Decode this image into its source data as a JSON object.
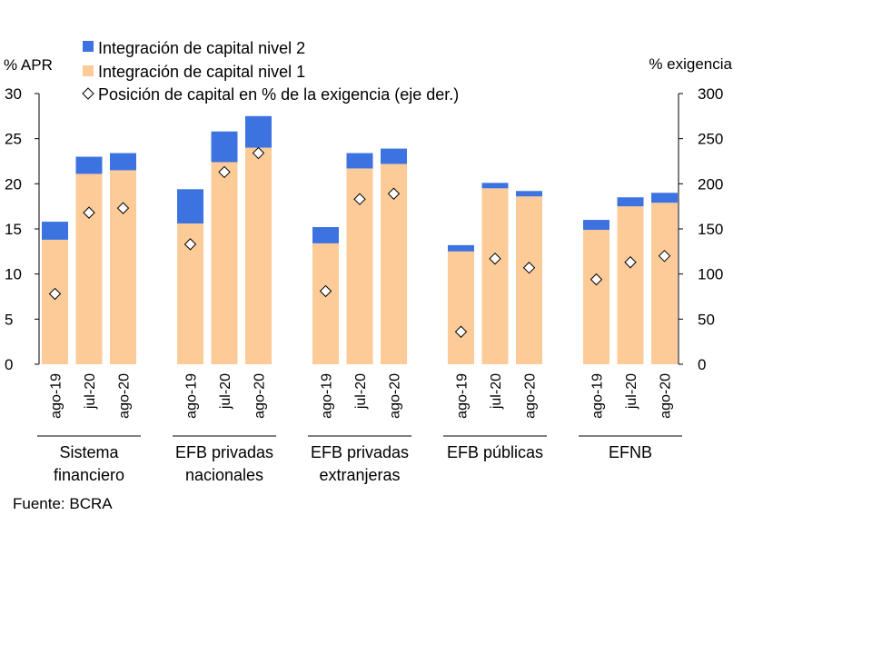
{
  "chart_data": {
    "type": "bar",
    "stacked": true,
    "left_axis_label": "% APR",
    "right_axis_label": "% exigencia",
    "ylim_left": [
      0,
      30
    ],
    "ylim_right": [
      0,
      300
    ],
    "left_ticks": [
      "0",
      "5",
      "10",
      "15",
      "20",
      "25",
      "30"
    ],
    "right_ticks": [
      "0",
      "50",
      "100",
      "150",
      "200",
      "250",
      "300"
    ],
    "legend": [
      {
        "label": "Integración de capital nivel 2",
        "color": "#3d73e0",
        "marker": "square"
      },
      {
        "label": "Integración de capital nivel 1",
        "color": "#fdcb97",
        "marker": "square"
      },
      {
        "label": "Posición de capital en % de la exigencia (eje der.)",
        "marker": "diamond"
      }
    ],
    "series": [
      {
        "name": "Integración de capital nivel 1",
        "color": "#fdcb97",
        "axis": "left"
      },
      {
        "name": "Integración de capital nivel 2",
        "color": "#3d73e0",
        "axis": "left"
      },
      {
        "name": "Posición de capital en % de la exigencia (eje der.)",
        "axis": "right"
      }
    ],
    "groups": [
      {
        "label_lines": [
          "Sistema",
          "financiero"
        ],
        "categories": [
          "ago-19",
          "jul-20",
          "ago-20"
        ],
        "nivel1": [
          13.8,
          21.1,
          21.5
        ],
        "nivel2": [
          2.0,
          1.9,
          1.9
        ],
        "posicion": [
          78,
          168,
          173
        ]
      },
      {
        "label_lines": [
          "EFB privadas",
          "nacionales"
        ],
        "categories": [
          "ago-19",
          "jul-20",
          "ago-20"
        ],
        "nivel1": [
          15.6,
          22.4,
          24.0
        ],
        "nivel2": [
          3.8,
          3.4,
          3.5
        ],
        "posicion": [
          133,
          213,
          234
        ]
      },
      {
        "label_lines": [
          "EFB privadas",
          "extranjeras"
        ],
        "categories": [
          "ago-19",
          "jul-20",
          "ago-20"
        ],
        "nivel1": [
          13.4,
          21.7,
          22.2
        ],
        "nivel2": [
          1.8,
          1.7,
          1.7
        ],
        "posicion": [
          81,
          183,
          189
        ]
      },
      {
        "label_lines": [
          "EFB públicas"
        ],
        "categories": [
          "ago-19",
          "jul-20",
          "ago-20"
        ],
        "nivel1": [
          12.5,
          19.5,
          18.6
        ],
        "nivel2": [
          0.7,
          0.6,
          0.6
        ],
        "posicion": [
          36,
          117,
          107
        ]
      },
      {
        "label_lines": [
          "EFNB"
        ],
        "categories": [
          "ago-19",
          "jul-20",
          "ago-20"
        ],
        "nivel1": [
          14.9,
          17.5,
          17.9
        ],
        "nivel2": [
          1.1,
          1.0,
          1.1
        ],
        "posicion": [
          94,
          113,
          120
        ]
      }
    ]
  },
  "source": "Fuente: BCRA"
}
